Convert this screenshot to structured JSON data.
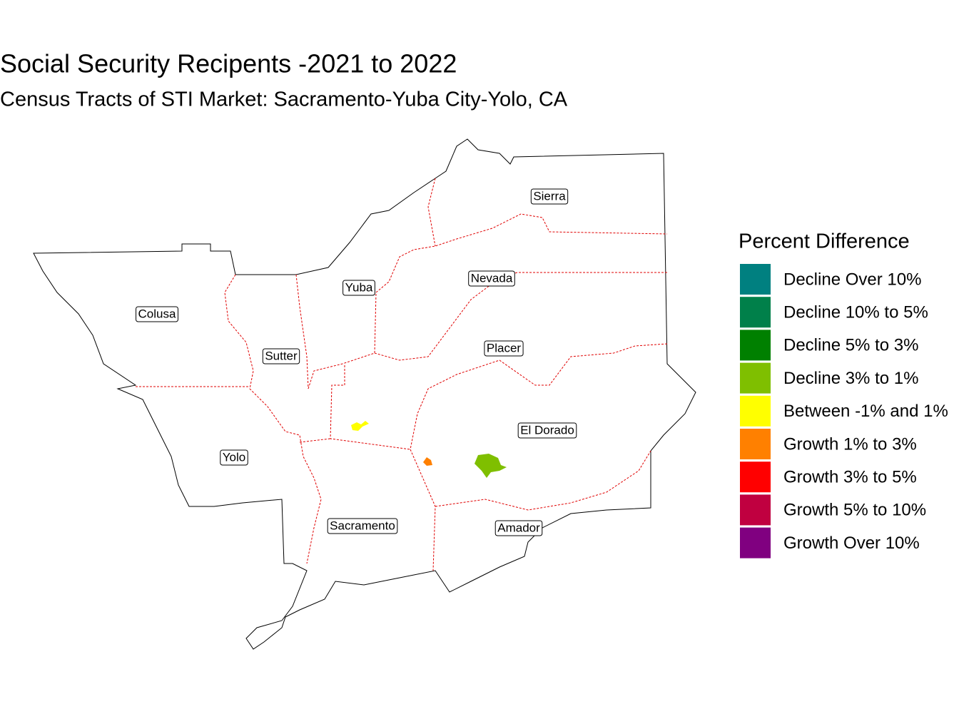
{
  "title": "Social Security Recipents -2021 to 2022",
  "subtitle": "Census Tracts of STI Market: Sacramento-Yuba City-Yolo, CA",
  "legend": {
    "title": "Percent Difference",
    "items": [
      {
        "label": "Decline Over 10%",
        "color": "#008080"
      },
      {
        "label": "Decline 10% to 5%",
        "color": "#00804a"
      },
      {
        "label": "Decline 5% to 3%",
        "color": "#008000"
      },
      {
        "label": "Decline 3% to 1%",
        "color": "#7fbf00"
      },
      {
        "label": "Between -1% and 1%",
        "color": "#ffff00"
      },
      {
        "label": "Growth 1% to 3%",
        "color": "#ff8000"
      },
      {
        "label": "Growth 3% to 5%",
        "color": "#ff0000"
      },
      {
        "label": "Growth 5% to 10%",
        "color": "#c00040"
      },
      {
        "label": "Growth Over 10%",
        "color": "#800080"
      }
    ]
  },
  "counties": [
    "Sierra",
    "Nevada",
    "Yuba",
    "Colusa",
    "Sutter",
    "Placer",
    "El Dorado",
    "Yolo",
    "Sacramento",
    "Amador"
  ]
}
